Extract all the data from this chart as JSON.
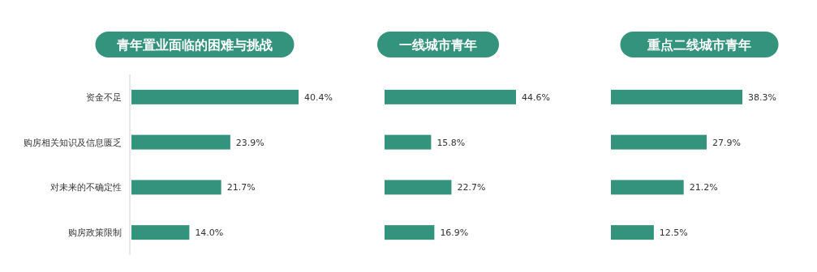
{
  "chart_data": [
    {
      "type": "bar",
      "orientation": "horizontal",
      "title": "青年置业面临的困难与挑战",
      "categories": [
        "资金不足",
        "购房相关知识及信息匮乏",
        "对未来的不确定性",
        "购房政策限制"
      ],
      "values": [
        40.4,
        23.9,
        21.7,
        14.0
      ],
      "value_labels": [
        "40.4%",
        "23.9%",
        "21.7%",
        "14.0%"
      ],
      "color": "#34937d",
      "tick_labels": "y"
    },
    {
      "type": "bar",
      "orientation": "horizontal",
      "title": "一线城市青年",
      "values": [
        44.6,
        15.8,
        22.7,
        16.9
      ],
      "value_labels": [
        "44.6%",
        "15.8%",
        "22.7%",
        "16.9%"
      ],
      "color": "#34937d",
      "tick_labels": false
    },
    {
      "type": "bar",
      "orientation": "horizontal",
      "title": "重点二线城市青年",
      "values": [
        38.3,
        27.9,
        21.2,
        12.5
      ],
      "value_labels": [
        "38.3%",
        "27.9%",
        "21.2%",
        "12.5%"
      ],
      "color": "#34937d",
      "tick_labels": false
    }
  ]
}
